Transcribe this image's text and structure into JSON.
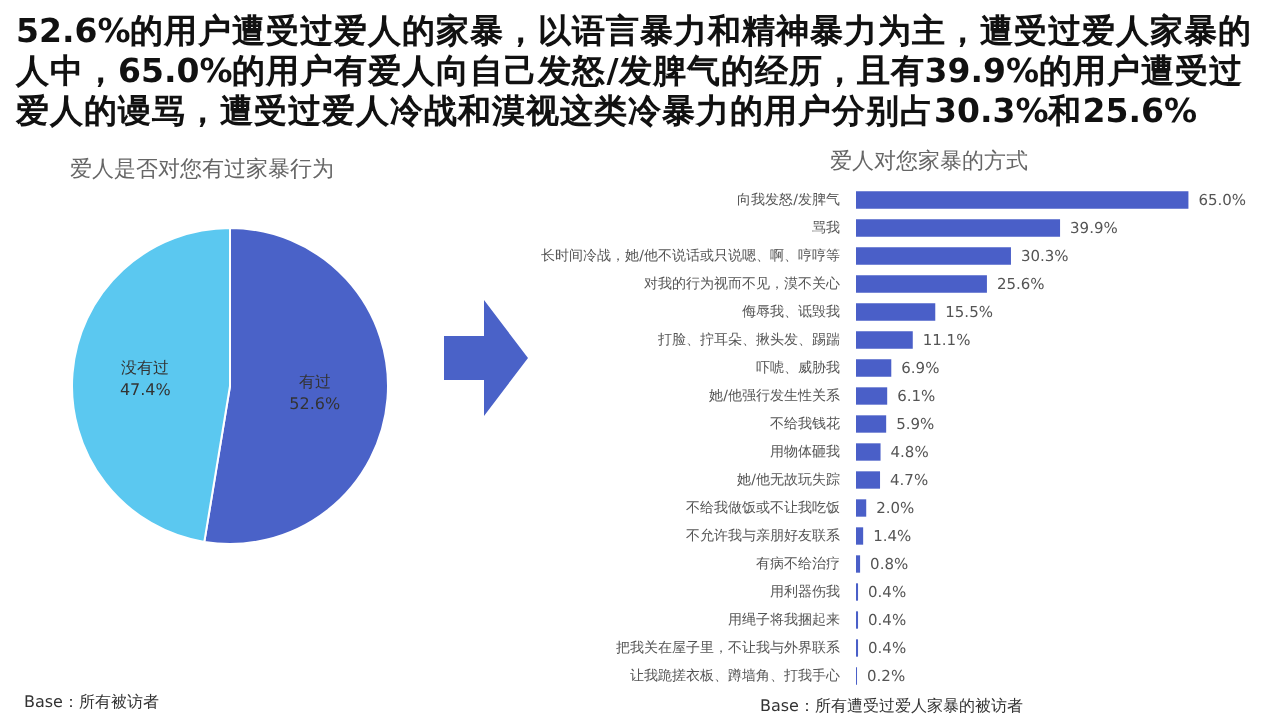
{
  "chart_data": [
    {
      "type": "pie",
      "title": "爱人是否对您有过家暴行为",
      "annotations": [
        "52.6%的用户遭受过爱人的家暴，以语言暴力和精神暴力为主，遭受过爱人家暴的人中，65.0%的用户有爱人向自己发怒/发脾气的经历，且有39.9%的用户遭受过爱人的谩骂，遭受过爱人冷战和漠视这类冷暴力的用户分别占30.3%和25.6%",
        "Base：所有被访者"
      ],
      "categories": [
        "有过",
        "没有过"
      ],
      "values": [
        52.6,
        47.4
      ],
      "colors": [
        "#4a62c8",
        "#5bc8f0"
      ],
      "value_labels": [
        "52.6%",
        "47.4%"
      ],
      "legend": false
    },
    {
      "type": "bar",
      "orientation": "horizontal",
      "title": "爱人对您家暴的方式",
      "annotations": [
        "Base：所有遭受过爱人家暴的被访者"
      ],
      "categories": [
        "向我发怒/发脾气",
        "骂我",
        "长时间冷战，她/他不说话或只说嗯、啊、哼哼等",
        "对我的行为视而不见，漠不关心",
        "侮辱我、诋毁我",
        "打脸、拧耳朵、揪头发、踢踹",
        "吓唬、威胁我",
        "她/他强行发生性关系",
        "不给我钱花",
        "用物体砸我",
        "她/他无故玩失踪",
        "不给我做饭或不让我吃饭",
        "不允许我与亲朋好友联系",
        "有病不给治疗",
        "用利器伤我",
        "用绳子将我捆起来",
        "把我关在屋子里，不让我与外界联系",
        "让我跪搓衣板、蹲墙角、打我手心"
      ],
      "values": [
        65.0,
        39.9,
        30.3,
        25.6,
        15.5,
        11.1,
        6.9,
        6.1,
        5.9,
        4.8,
        4.7,
        2.0,
        1.4,
        0.8,
        0.4,
        0.4,
        0.4,
        0.2
      ],
      "value_labels": [
        "65.0%",
        "39.9%",
        "30.3%",
        "25.6%",
        "15.5%",
        "11.1%",
        "6.9%",
        "6.1%",
        "5.9%",
        "4.8%",
        "4.7%",
        "2.0%",
        "1.4%",
        "0.8%",
        "0.4%",
        "0.4%",
        "0.4%",
        "0.2%"
      ],
      "color": "#4a5fc8",
      "legend": false
    }
  ]
}
